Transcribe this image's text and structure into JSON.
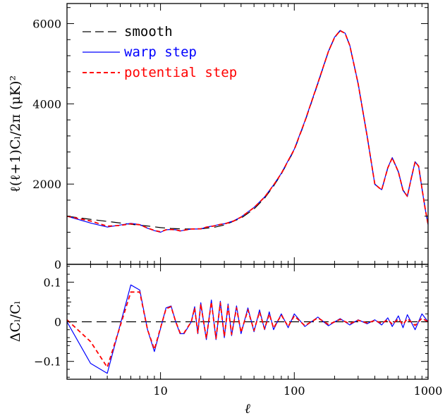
{
  "chart_data": [
    {
      "type": "line",
      "panel": "top",
      "ylabel": "ℓ(ℓ+1)Cₗ/2π (μK)²",
      "xscale": "log",
      "xlim": [
        2,
        1000
      ],
      "ylim": [
        0,
        6500
      ],
      "yticks": [
        0,
        2000,
        4000,
        6000
      ],
      "legend_position": "top-left",
      "series": [
        {
          "name": "smooth",
          "color": "#000000",
          "dash": "long-dash",
          "x": [
            2,
            3,
            4,
            5,
            6,
            7,
            8,
            9,
            10,
            12,
            15,
            20,
            25,
            30,
            40,
            50,
            60,
            70,
            80,
            100,
            120,
            150,
            180,
            200,
            220,
            240,
            260,
            300,
            350,
            400,
            450,
            500,
            540,
            600,
            650,
            700,
            750,
            800,
            850,
            900,
            950,
            1000
          ],
          "y": [
            1200,
            1120,
            1070,
            1030,
            1000,
            975,
            955,
            935,
            915,
            895,
            880,
            885,
            920,
            980,
            1150,
            1380,
            1650,
            1950,
            2250,
            2850,
            3550,
            4500,
            5300,
            5650,
            5820,
            5750,
            5450,
            4500,
            3200,
            2000,
            1850,
            2400,
            2650,
            2300,
            1850,
            1700,
            2150,
            2550,
            2450,
            1900,
            1400,
            1000
          ]
        },
        {
          "name": "warp step",
          "color": "#0000ff",
          "dash": "solid",
          "x": [
            2,
            3,
            4,
            5,
            6,
            7,
            8,
            9,
            10,
            11,
            12,
            13,
            14,
            15,
            17,
            20,
            22,
            25,
            28,
            30,
            35,
            40,
            50,
            60,
            70,
            80,
            100,
            120,
            150,
            180,
            200,
            220,
            240,
            260,
            300,
            350,
            400,
            450,
            500,
            540,
            600,
            650,
            700,
            750,
            800,
            850,
            900,
            950,
            1000
          ],
          "y": [
            1200,
            1030,
            930,
            980,
            1020,
            990,
            900,
            840,
            800,
            860,
            870,
            860,
            830,
            850,
            880,
            880,
            930,
            960,
            1000,
            1010,
            1080,
            1180,
            1420,
            1680,
            1980,
            2270,
            2870,
            3570,
            4520,
            5310,
            5660,
            5830,
            5760,
            5460,
            4510,
            3210,
            1990,
            1860,
            2410,
            2660,
            2310,
            1840,
            1690,
            2160,
            2560,
            2440,
            1890,
            1390,
            990
          ]
        },
        {
          "name": "potential step",
          "color": "#ff0000",
          "dash": "short-dash",
          "x": [
            2,
            3,
            4,
            5,
            6,
            7,
            8,
            9,
            10,
            11,
            12,
            13,
            14,
            15,
            17,
            20,
            22,
            25,
            28,
            30,
            35,
            40,
            50,
            60,
            70,
            80,
            100,
            120,
            150,
            180,
            200,
            220,
            240,
            260,
            300,
            350,
            400,
            450,
            500,
            540,
            600,
            650,
            700,
            750,
            800,
            850,
            900,
            950,
            1000
          ],
          "y": [
            1200,
            1080,
            950,
            970,
            1010,
            985,
            905,
            845,
            810,
            860,
            870,
            860,
            835,
            850,
            880,
            885,
            925,
            955,
            995,
            1005,
            1075,
            1175,
            1415,
            1675,
            1975,
            2265,
            2865,
            3565,
            4515,
            5305,
            5655,
            5825,
            5755,
            5455,
            4505,
            3205,
            1995,
            1855,
            2405,
            2655,
            2305,
            1845,
            1695,
            2155,
            2555,
            2445,
            1895,
            1395,
            995
          ]
        }
      ]
    },
    {
      "type": "line",
      "panel": "bottom",
      "xlabel": "ℓ",
      "ylabel": "ΔCₗ/Cₗ",
      "xscale": "log",
      "xlim": [
        2,
        1000
      ],
      "xticks": [
        10,
        100,
        1000
      ],
      "ylim": [
        -0.145,
        0.145
      ],
      "yticks": [
        -0.1,
        0,
        0.1
      ],
      "series": [
        {
          "name": "smooth",
          "color": "#000000",
          "dash": "long-dash",
          "x": [
            2,
            1000
          ],
          "y": [
            0,
            0
          ]
        },
        {
          "name": "warp step",
          "color": "#0000ff",
          "dash": "solid",
          "x": [
            2,
            3,
            4,
            6,
            7,
            8,
            9,
            11,
            12,
            13,
            14,
            15,
            17,
            18,
            19,
            20,
            21,
            22,
            24,
            26,
            28,
            30,
            32,
            34,
            37,
            40,
            45,
            50,
            55,
            60,
            65,
            70,
            80,
            90,
            100,
            120,
            150,
            180,
            220,
            260,
            300,
            350,
            400,
            450,
            500,
            540,
            600,
            650,
            700,
            800,
            900,
            1000
          ],
          "y": [
            0.0,
            -0.105,
            -0.13,
            0.093,
            0.08,
            -0.02,
            -0.075,
            0.035,
            0.04,
            0.0,
            -0.03,
            -0.03,
            0.0,
            0.038,
            -0.03,
            0.048,
            0.0,
            -0.045,
            0.055,
            -0.045,
            0.052,
            -0.04,
            0.045,
            -0.035,
            0.04,
            -0.03,
            0.035,
            -0.025,
            0.03,
            -0.02,
            0.025,
            -0.02,
            0.02,
            -0.015,
            0.02,
            -0.012,
            0.012,
            -0.01,
            0.008,
            -0.008,
            0.005,
            -0.005,
            0.005,
            -0.008,
            0.01,
            -0.012,
            0.015,
            -0.015,
            0.018,
            -0.02,
            0.02,
            0.0
          ]
        },
        {
          "name": "potential step",
          "color": "#ff0000",
          "dash": "short-dash",
          "x": [
            2,
            3,
            4,
            6,
            7,
            8,
            9,
            11,
            12,
            13,
            14,
            15,
            17,
            18,
            19,
            20,
            21,
            22,
            24,
            26,
            28,
            30,
            32,
            34,
            37,
            40,
            45,
            50,
            55,
            60,
            65,
            70,
            80,
            90,
            100,
            120,
            150,
            180,
            220,
            260,
            300,
            350,
            400,
            450,
            500,
            540,
            600,
            650,
            700,
            800,
            900,
            1000
          ],
          "y": [
            0.005,
            -0.05,
            -0.115,
            0.075,
            0.075,
            -0.02,
            -0.07,
            0.033,
            0.038,
            0.0,
            -0.028,
            -0.028,
            0.0,
            0.035,
            -0.028,
            0.045,
            0.0,
            -0.042,
            0.05,
            -0.042,
            0.048,
            -0.037,
            0.04,
            -0.032,
            0.035,
            -0.027,
            0.03,
            -0.022,
            0.025,
            -0.018,
            0.02,
            -0.016,
            0.017,
            -0.012,
            0.015,
            -0.01,
            0.01,
            -0.007,
            0.006,
            -0.005,
            0.004,
            -0.003,
            0.003,
            -0.004,
            0.005,
            -0.006,
            0.007,
            -0.007,
            0.008,
            -0.009,
            0.009,
            0.0
          ]
        }
      ]
    }
  ]
}
